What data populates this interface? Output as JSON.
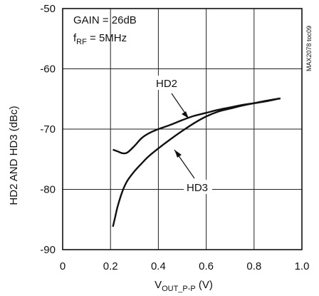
{
  "chart_data": {
    "type": "line",
    "title": "",
    "xlabel": "V_OUT_P-P (V)",
    "xlabel_parts": {
      "main": "V",
      "sub": "OUT_P-P",
      "unit": " (V)"
    },
    "ylabel": "HD2 AND HD3 (dBc)",
    "xlim": [
      0,
      1.0
    ],
    "ylim": [
      -90,
      -50
    ],
    "x_ticks": [
      0,
      0.2,
      0.4,
      0.6,
      0.8,
      1.0
    ],
    "x_tick_labels": [
      "0",
      "0.2",
      "0.4",
      "0.6",
      "0.8",
      "1.0"
    ],
    "y_ticks": [
      -90,
      -80,
      -70,
      -60,
      -50
    ],
    "y_tick_labels": [
      "-90",
      "-80",
      "-70",
      "-60",
      "-50"
    ],
    "grid": true,
    "legend": "none",
    "annotations": {
      "gain": "GAIN = 26dB",
      "frf_main": "f",
      "frf_sub": "RF",
      "frf_rest": " = 5MHz",
      "doc_id": "MAX2078 toc09"
    },
    "series": [
      {
        "name": "HD2",
        "color": "#111111",
        "x": [
          0.21,
          0.23,
          0.25,
          0.27,
          0.3,
          0.33,
          0.36,
          0.4,
          0.45,
          0.5,
          0.55,
          0.6,
          0.65,
          0.7,
          0.75,
          0.8,
          0.85,
          0.91
        ],
        "y": [
          -73.4,
          -73.7,
          -74.0,
          -73.9,
          -72.8,
          -71.5,
          -70.7,
          -70.0,
          -69.3,
          -68.5,
          -67.8,
          -67.3,
          -66.8,
          -66.4,
          -66.0,
          -65.7,
          -65.4,
          -64.9
        ]
      },
      {
        "name": "HD3",
        "color": "#111111",
        "x": [
          0.21,
          0.22,
          0.23,
          0.25,
          0.27,
          0.3,
          0.33,
          0.36,
          0.4,
          0.45,
          0.5,
          0.55,
          0.6,
          0.65,
          0.7,
          0.75,
          0.8,
          0.85,
          0.91
        ],
        "y": [
          -86.2,
          -84.5,
          -82.8,
          -80.3,
          -78.6,
          -77.0,
          -75.7,
          -74.5,
          -73.2,
          -71.7,
          -70.3,
          -69.0,
          -67.9,
          -67.1,
          -66.6,
          -66.1,
          -65.7,
          -65.3,
          -64.9
        ]
      }
    ],
    "series_labels": [
      "HD2",
      "HD3"
    ]
  }
}
